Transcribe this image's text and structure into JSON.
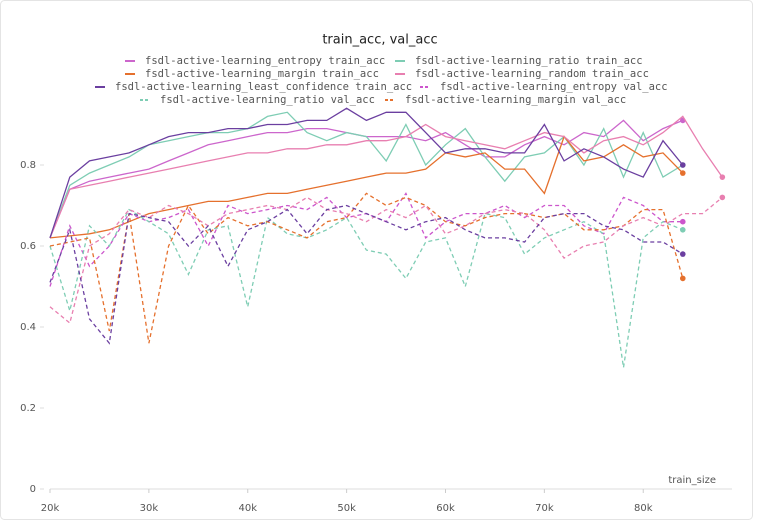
{
  "chart_data": {
    "type": "line",
    "title": "train_acc, val_acc",
    "x_label": "train_size",
    "x": [
      20000,
      22000,
      24000,
      26000,
      28000,
      30000,
      32000,
      34000,
      36000,
      38000,
      40000,
      42000,
      44000,
      46000,
      48000,
      50000,
      52000,
      54000,
      56000,
      58000,
      60000,
      62000,
      64000,
      66000,
      68000,
      70000,
      72000,
      74000,
      76000,
      78000,
      80000,
      82000,
      84000,
      86000,
      88000
    ],
    "xlim": [
      20000,
      91000
    ],
    "xticks": [
      {
        "value": 20000,
        "label": "20k"
      },
      {
        "value": 30000,
        "label": "30k"
      },
      {
        "value": 40000,
        "label": "40k"
      },
      {
        "value": 50000,
        "label": "50k"
      },
      {
        "value": 60000,
        "label": "60k"
      },
      {
        "value": 70000,
        "label": "70k"
      },
      {
        "value": 80000,
        "label": "80k"
      }
    ],
    "ylim": [
      0,
      1.0
    ],
    "yticks": [
      0,
      0.2,
      0.4,
      0.6,
      0.8
    ],
    "series": [
      {
        "name": "fsdl-active-learning_entropy train_acc",
        "color": "#cc66cc",
        "style": "solid",
        "values": [
          0.62,
          0.74,
          0.76,
          0.77,
          0.78,
          0.79,
          0.81,
          0.83,
          0.85,
          0.86,
          0.87,
          0.88,
          0.88,
          0.89,
          0.89,
          0.88,
          0.87,
          0.87,
          0.87,
          0.86,
          0.88,
          0.85,
          0.82,
          0.82,
          0.85,
          0.87,
          0.85,
          0.88,
          0.87,
          0.91,
          0.86,
          0.89,
          0.91,
          null,
          null
        ]
      },
      {
        "name": "fsdl-active-learning_ratio train_acc",
        "color": "#7ecdb4",
        "style": "solid",
        "values": [
          0.62,
          0.75,
          0.78,
          0.8,
          0.82,
          0.85,
          0.86,
          0.87,
          0.88,
          0.88,
          0.89,
          0.92,
          0.93,
          0.88,
          0.86,
          0.88,
          0.87,
          0.81,
          0.9,
          0.8,
          0.85,
          0.89,
          0.82,
          0.76,
          0.82,
          0.83,
          0.87,
          0.8,
          0.89,
          0.77,
          0.88,
          0.77,
          0.8,
          null,
          null
        ]
      },
      {
        "name": "fsdl-active-learning_margin train_acc",
        "color": "#e5702d",
        "style": "solid",
        "values": [
          0.62,
          0.625,
          0.63,
          0.64,
          0.66,
          0.68,
          0.69,
          0.7,
          0.71,
          0.71,
          0.72,
          0.73,
          0.73,
          0.74,
          0.75,
          0.76,
          0.77,
          0.78,
          0.78,
          0.79,
          0.83,
          0.82,
          0.83,
          0.79,
          0.79,
          0.73,
          0.87,
          0.81,
          0.82,
          0.85,
          0.82,
          0.83,
          0.78,
          null,
          null
        ]
      },
      {
        "name": "fsdl-active-learning_random train_acc",
        "color": "#e87fb0",
        "style": "solid",
        "values": [
          0.62,
          0.74,
          0.75,
          0.76,
          0.77,
          0.78,
          0.79,
          0.8,
          0.81,
          0.82,
          0.83,
          0.83,
          0.84,
          0.84,
          0.85,
          0.85,
          0.86,
          0.86,
          0.87,
          0.9,
          0.87,
          0.86,
          0.85,
          0.84,
          0.86,
          0.88,
          0.87,
          0.83,
          0.86,
          0.87,
          0.85,
          0.88,
          0.92,
          0.84,
          0.77
        ]
      },
      {
        "name": "fsdl-active-learning_least_confidence train_acc",
        "color": "#6b3fa0",
        "style": "solid",
        "values": [
          0.62,
          0.77,
          0.81,
          0.82,
          0.83,
          0.85,
          0.87,
          0.88,
          0.88,
          0.89,
          0.89,
          0.9,
          0.9,
          0.91,
          0.91,
          0.94,
          0.91,
          0.93,
          0.93,
          0.88,
          0.83,
          0.84,
          0.84,
          0.83,
          0.83,
          0.9,
          0.81,
          0.84,
          0.82,
          0.79,
          0.77,
          0.86,
          0.8,
          null,
          null
        ]
      },
      {
        "name": "fsdl-active-learning_entropy val_acc",
        "color": "#cc55cc",
        "style": "dashed",
        "values": [
          0.5,
          0.65,
          0.55,
          0.6,
          0.68,
          0.66,
          0.67,
          0.69,
          0.6,
          0.7,
          0.68,
          0.69,
          0.7,
          0.69,
          0.72,
          0.67,
          0.68,
          0.66,
          0.73,
          0.62,
          0.66,
          0.68,
          0.68,
          0.7,
          0.67,
          0.7,
          0.7,
          0.65,
          0.63,
          0.72,
          0.7,
          0.66,
          0.66,
          null,
          null
        ]
      },
      {
        "name": "fsdl-active-learning_ratio val_acc",
        "color": "#7ecdb4",
        "style": "dashed",
        "values": [
          0.6,
          0.44,
          0.65,
          0.6,
          0.69,
          0.66,
          0.63,
          0.53,
          0.64,
          0.65,
          0.45,
          0.67,
          0.63,
          0.62,
          0.64,
          0.67,
          0.59,
          0.58,
          0.52,
          0.61,
          0.62,
          0.5,
          0.68,
          0.67,
          0.58,
          0.62,
          0.64,
          0.66,
          0.63,
          0.3,
          0.62,
          0.66,
          0.64,
          null,
          null
        ]
      },
      {
        "name": "fsdl-active-learning_margin val_acc",
        "color": "#e5702d",
        "style": "dashed",
        "values": [
          0.6,
          0.61,
          0.62,
          0.39,
          0.68,
          0.36,
          0.6,
          0.7,
          0.63,
          0.67,
          0.65,
          0.66,
          0.64,
          0.62,
          0.66,
          0.67,
          0.73,
          0.7,
          0.72,
          0.7,
          0.66,
          0.65,
          0.67,
          0.68,
          0.68,
          0.67,
          0.68,
          0.64,
          0.64,
          0.65,
          0.69,
          0.69,
          0.52,
          null,
          null
        ]
      },
      {
        "color": "#e87fb0",
        "style": "dashed",
        "values": [
          0.45,
          0.41,
          0.6,
          0.63,
          0.69,
          0.67,
          0.7,
          0.68,
          0.65,
          0.68,
          0.69,
          0.7,
          0.69,
          0.72,
          0.69,
          0.68,
          0.66,
          0.69,
          0.67,
          0.7,
          0.63,
          0.65,
          0.68,
          0.69,
          0.68,
          0.64,
          0.57,
          0.6,
          0.61,
          0.65,
          0.67,
          0.65,
          0.68,
          0.68,
          0.72
        ]
      },
      {
        "color": "#6b3fa0",
        "style": "dashed",
        "values": [
          0.51,
          0.64,
          0.42,
          0.36,
          0.68,
          0.67,
          0.66,
          0.6,
          0.65,
          0.55,
          0.64,
          0.66,
          0.69,
          0.63,
          0.69,
          0.7,
          0.68,
          0.66,
          0.64,
          0.66,
          0.67,
          0.64,
          0.62,
          0.62,
          0.61,
          0.67,
          0.68,
          0.68,
          0.65,
          0.64,
          0.61,
          0.61,
          0.58,
          null,
          null
        ]
      }
    ]
  }
}
